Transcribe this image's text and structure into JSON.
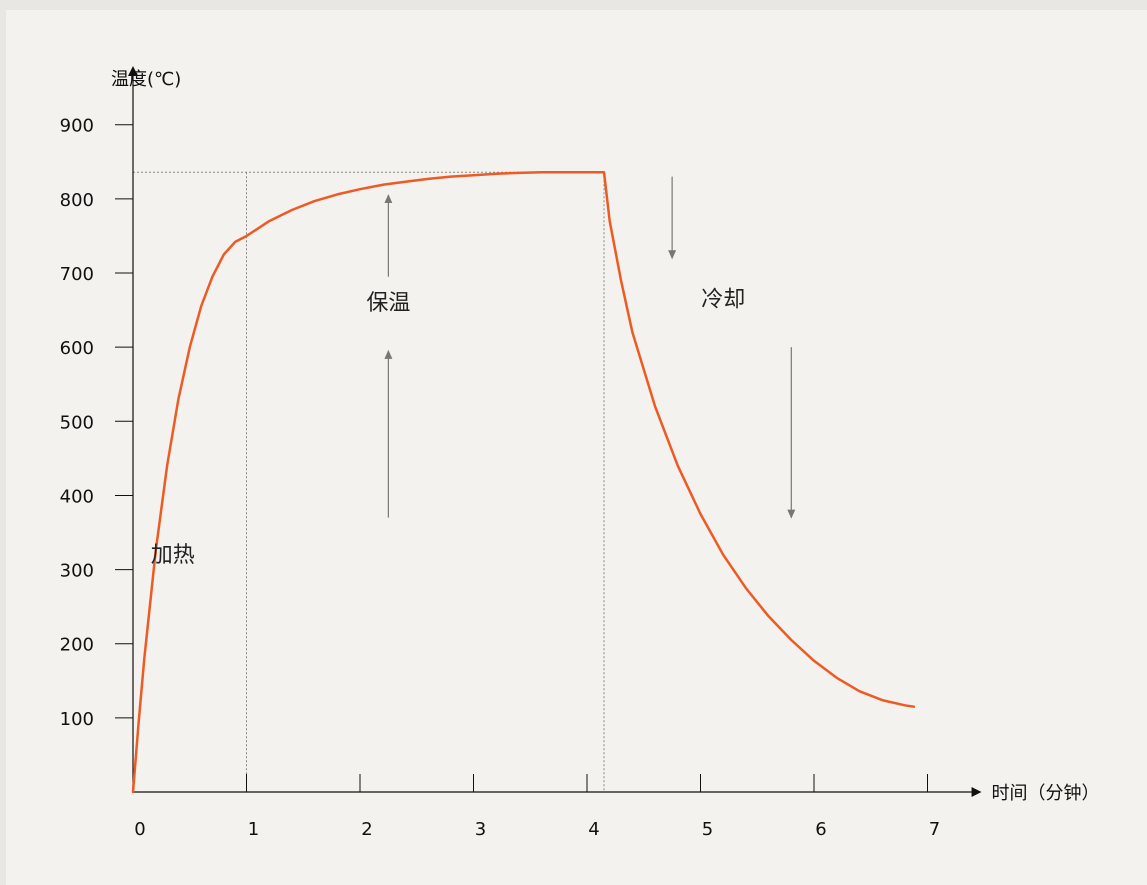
{
  "chart_data": {
    "type": "line",
    "xlabel": "时间（分钟）",
    "ylabel": "温度(℃)",
    "x_ticks": [
      "0",
      "1",
      "2",
      "3",
      "4",
      "5",
      "6",
      "7"
    ],
    "y_ticks": [
      "100",
      "200",
      "300",
      "400",
      "500",
      "600",
      "700",
      "800",
      "900"
    ],
    "xlim": [
      0,
      7.3
    ],
    "ylim": [
      0,
      900
    ],
    "series": [
      {
        "color": "#ee5a24",
        "x": [
          0,
          0.05,
          0.1,
          0.2,
          0.3,
          0.4,
          0.5,
          0.6,
          0.7,
          0.8,
          0.9,
          1.0,
          1.2,
          1.4,
          1.6,
          1.8,
          2.0,
          2.2,
          2.4,
          2.6,
          2.8,
          3.0,
          3.2,
          3.4,
          3.6,
          3.8,
          4.0,
          4.15,
          4.2,
          4.3,
          4.4,
          4.6,
          4.8,
          5.0,
          5.2,
          5.4,
          5.6,
          5.8,
          6.0,
          6.2,
          6.4,
          6.6,
          6.8,
          6.88
        ],
        "y": [
          0,
          95,
          180,
          325,
          440,
          530,
          600,
          655,
          695,
          725,
          742,
          750,
          770,
          785,
          797,
          806,
          813,
          819,
          823,
          827,
          830,
          832,
          834,
          835,
          836,
          836,
          836,
          836,
          770,
          690,
          620,
          520,
          440,
          375,
          320,
          275,
          237,
          205,
          177,
          154,
          136,
          124,
          117,
          115
        ]
      }
    ],
    "reference_lines": {
      "hold_temperature": 836,
      "hold_start_time": 1.0,
      "hold_end_time": 4.15
    },
    "annotations": [
      {
        "text": "加热",
        "x": 0.35,
        "y": 310
      },
      {
        "text": "保温",
        "x": 2.25,
        "y": 650
      },
      {
        "text": "冷却",
        "x": 5.2,
        "y": 655
      }
    ],
    "arrows": [
      {
        "x": 2.25,
        "y_from": 695,
        "y_to": 805
      },
      {
        "x": 2.25,
        "y_from": 370,
        "y_to": 595
      },
      {
        "x": 4.75,
        "y_from": 830,
        "y_to": 720
      },
      {
        "x": 5.8,
        "y_from": 600,
        "y_to": 370
      }
    ]
  }
}
